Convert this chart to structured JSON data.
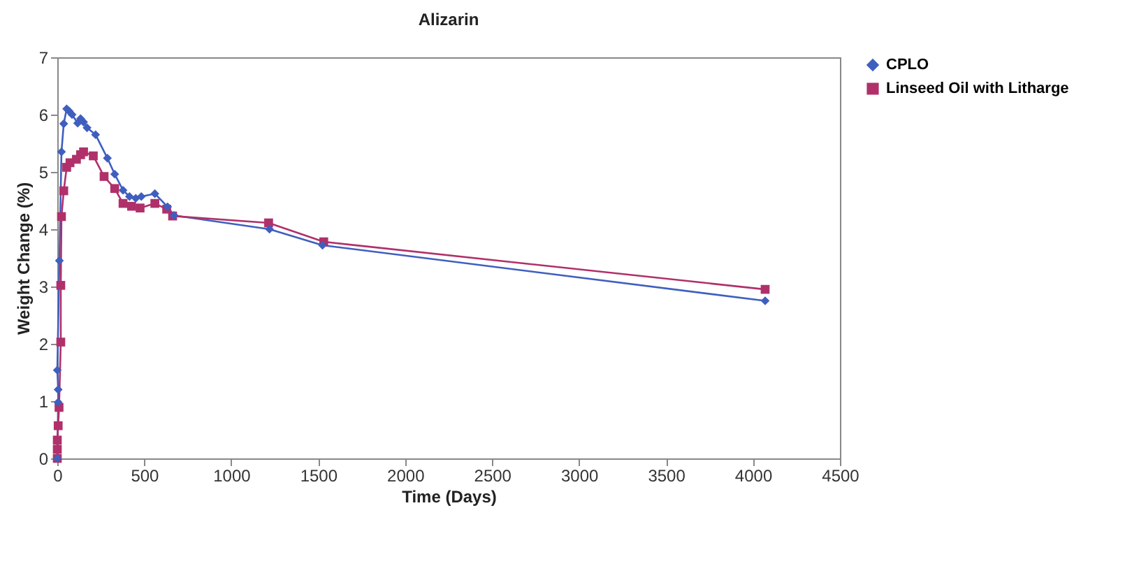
{
  "chart_data": {
    "type": "line",
    "title": "Alizarin",
    "xlabel": "Time (Days)",
    "ylabel": "Weight Change (%)",
    "xlim": [
      0,
      4500
    ],
    "xticks": [
      0,
      500,
      1000,
      1500,
      2000,
      2500,
      3000,
      3500,
      4000,
      4500
    ],
    "ylim": [
      0,
      7
    ],
    "yticks": [
      0,
      1,
      2,
      3,
      4,
      5,
      6,
      7
    ],
    "grid": false,
    "legend": "right",
    "line_style": "solid",
    "series": [
      {
        "name": "CPLO",
        "color": "#3f5fbf",
        "marker": "diamond",
        "x": [
          0,
          5,
          5,
          0,
          12,
          24,
          37,
          54,
          68,
          85,
          117,
          134,
          151,
          171,
          220,
          288,
          330,
          378,
          415,
          451,
          483,
          561,
          634,
          671,
          1220,
          1525,
          4070
        ],
        "values": [
          0,
          0.98,
          1.2,
          1.54,
          3.45,
          5.35,
          5.84,
          6.1,
          6.06,
          6.0,
          5.85,
          5.93,
          5.87,
          5.77,
          5.65,
          5.24,
          4.96,
          4.68,
          4.57,
          4.54,
          4.57,
          4.62,
          4.39,
          4.24,
          4.0,
          3.72,
          2.75
        ]
      },
      {
        "name": "Linseed Oil with Litharge",
        "color": "#b0306a",
        "marker": "square",
        "x": [
          0,
          0,
          0,
          5,
          10,
          20,
          20,
          24,
          37,
          54,
          73,
          110,
          134,
          151,
          207,
          269,
          330,
          378,
          427,
          476,
          561,
          629,
          663,
          1215,
          1532,
          4070
        ],
        "values": [
          0,
          0.16,
          0.32,
          0.57,
          0.89,
          2.03,
          3.02,
          4.22,
          4.67,
          5.08,
          5.16,
          5.22,
          5.3,
          5.35,
          5.28,
          4.92,
          4.71,
          4.45,
          4.4,
          4.37,
          4.45,
          4.35,
          4.23,
          4.11,
          3.78,
          2.95
        ]
      }
    ]
  }
}
